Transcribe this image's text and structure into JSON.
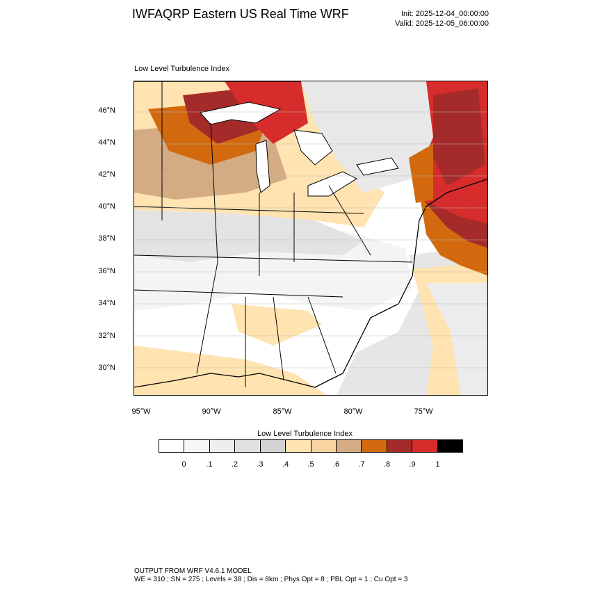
{
  "header": {
    "title": "IWFAQRP Eastern US Real Time WRF",
    "init": "Init: 2025-12-04_00:00:00",
    "valid": "Valid: 2025-12-05_06:00:00"
  },
  "map": {
    "title": "Low Level Turbulence Index",
    "lat_labels": [
      "46°N",
      "44°N",
      "42°N",
      "40°N",
      "38°N",
      "36°N",
      "34°N",
      "32°N",
      "30°N"
    ],
    "lon_labels": [
      "95°W",
      "90°W",
      "85°W",
      "80°W",
      "75°W"
    ]
  },
  "legend": {
    "title": "Low Level Turbulence Index",
    "colors": [
      "#ffffff",
      "#f7f7f7",
      "#ededed",
      "#e0e0e0",
      "#d2d2d2",
      "#ffe3b0",
      "#f7d4a0",
      "#d4ac84",
      "#d2690e",
      "#a52a2a",
      "#d62c2c",
      "#000000"
    ],
    "labels": [
      "0",
      ".1",
      ".2",
      ".3",
      ".4",
      ".5",
      ".6",
      ".7",
      ".8",
      ".9",
      "1"
    ]
  },
  "footer": {
    "line1": "OUTPUT FROM WRF V4.6.1 MODEL",
    "line2": "WE = 310 ; SN = 275 ; Levels = 38 ; Dis = 8km ; Phys Opt = 8 ; PBL Opt = 1 ; Cu Opt = 3"
  }
}
